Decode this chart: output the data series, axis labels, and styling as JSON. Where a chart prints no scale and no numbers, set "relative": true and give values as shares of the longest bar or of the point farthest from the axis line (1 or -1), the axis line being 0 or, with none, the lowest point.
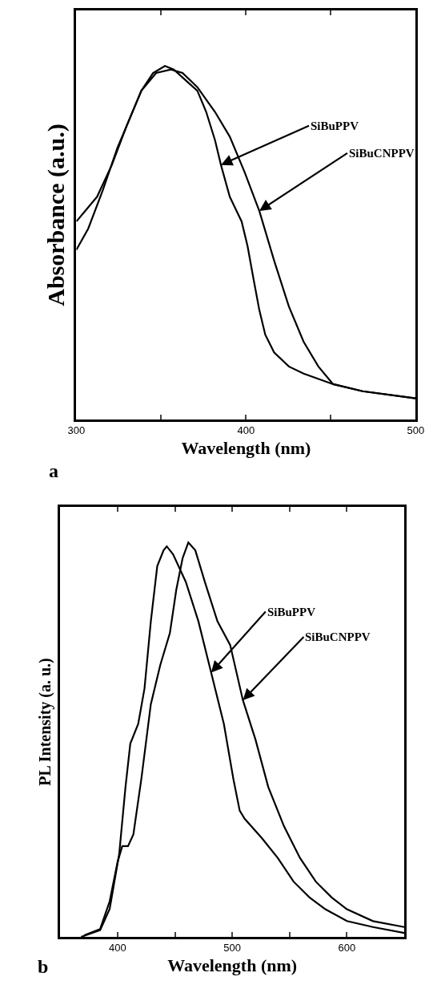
{
  "chart_data": [
    {
      "type": "line",
      "relative": true,
      "xlabel": "Wavelength (nm)",
      "ylabel": "Absorbance (a.u.)",
      "xlim": [
        300,
        500
      ],
      "xticks": [
        300,
        {
          "value": 350,
          "label": null
        },
        400,
        {
          "value": 450,
          "label": null
        },
        500
      ],
      "tick_labels": "x",
      "marker": "none",
      "line_style": "solid",
      "series": [
        {
          "color": "#000000",
          "x": [
            300,
            307,
            315.7,
            324.3,
            329.6,
            338.3,
            345.2,
            352.2,
            357.4,
            364.3,
            371.3,
            376.5,
            381.7,
            385.2,
            390.4,
            397.4,
            400.9,
            404.3,
            407.8,
            411.3,
            416.5,
            425.2,
            433.9,
            451.3,
            468.7,
            500
          ],
          "values": [
            0.48,
            0.54,
            0.65,
            0.77,
            0.83,
            0.93,
            0.98,
            1,
            0.99,
            0.96,
            0.93,
            0.87,
            0.79,
            0.72,
            0.63,
            0.56,
            0.49,
            0.4,
            0.31,
            0.24,
            0.19,
            0.15,
            0.13,
            0.1,
            0.08,
            0.06
          ]
        },
        {
          "color": "#000000",
          "x": [
            300,
            305.2,
            312.2,
            320.9,
            329.6,
            338.3,
            347,
            355.7,
            362.6,
            371.3,
            381.7,
            390.4,
            399.1,
            407.8,
            416.5,
            425.2,
            433.9,
            442.6,
            451.3,
            468.7,
            500
          ],
          "values": [
            0.56,
            0.59,
            0.63,
            0.72,
            0.83,
            0.93,
            0.98,
            0.99,
            0.98,
            0.94,
            0.87,
            0.8,
            0.7,
            0.59,
            0.45,
            0.32,
            0.22,
            0.15,
            0.1,
            0.08,
            0.06
          ]
        }
      ],
      "annotations": [
        {
          "text": "SiBuPPV",
          "x": 385.2,
          "y": 0.72
        },
        {
          "text": "SiBuCNPPV",
          "x": 407.8,
          "y": 0.59
        },
        "a"
      ]
    },
    {
      "type": "line",
      "relative": true,
      "xlabel": "Wavelength (nm)",
      "ylabel": "PL Intensity (a. u.)",
      "xlim": [
        350,
        650
      ],
      "xticks": [
        400,
        {
          "value": 450,
          "label": null
        },
        500,
        {
          "value": 550,
          "label": null
        },
        600
      ],
      "tick_labels": "x",
      "marker": "none",
      "line_style": "solid",
      "series": [
        {
          "color": "#000000",
          "x": [
            368.2,
            384.8,
            393.1,
            401.4,
            406.9,
            411.1,
            418,
            423.5,
            429,
            434.6,
            440.1,
            442.9,
            448.4,
            459.5,
            470.5,
            481.6,
            492.7,
            501,
            506.5,
            510.7,
            525.9,
            539.7,
            553.5,
            567.4,
            581.2,
            600,
            622.7,
            650
          ],
          "values": [
            0,
            0.017,
            0.071,
            0.21,
            0.38,
            0.49,
            0.54,
            0.63,
            0.8,
            0.94,
            0.98,
            0.99,
            0.97,
            0.9,
            0.8,
            0.67,
            0.54,
            0.4,
            0.32,
            0.3,
            0.25,
            0.2,
            0.14,
            0.1,
            0.07,
            0.04,
            0.025,
            0.01
          ]
        },
        {
          "color": "#000000",
          "x": [
            371,
            384.8,
            393.1,
            400,
            404.1,
            409.1,
            413.8,
            420.7,
            429,
            437.3,
            445.6,
            451.2,
            456.7,
            461.7,
            467.8,
            476.1,
            487.1,
            498.2,
            509.3,
            520.3,
            531.4,
            545.2,
            559.1,
            572.9,
            586.7,
            600,
            622.7,
            650
          ],
          "values": [
            0.004,
            0.02,
            0.09,
            0.19,
            0.23,
            0.23,
            0.26,
            0.4,
            0.59,
            0.69,
            0.77,
            0.88,
            0.96,
            1,
            0.98,
            0.9,
            0.8,
            0.74,
            0.6,
            0.5,
            0.38,
            0.28,
            0.2,
            0.14,
            0.1,
            0.07,
            0.04,
            0.025
          ]
        }
      ],
      "annotations": [
        {
          "text": "SiBuPPV",
          "x": 481.6,
          "y": 0.67
        },
        {
          "text": "SiBuCNPPV",
          "x": 509.3,
          "y": 0.6
        },
        "b"
      ]
    }
  ]
}
